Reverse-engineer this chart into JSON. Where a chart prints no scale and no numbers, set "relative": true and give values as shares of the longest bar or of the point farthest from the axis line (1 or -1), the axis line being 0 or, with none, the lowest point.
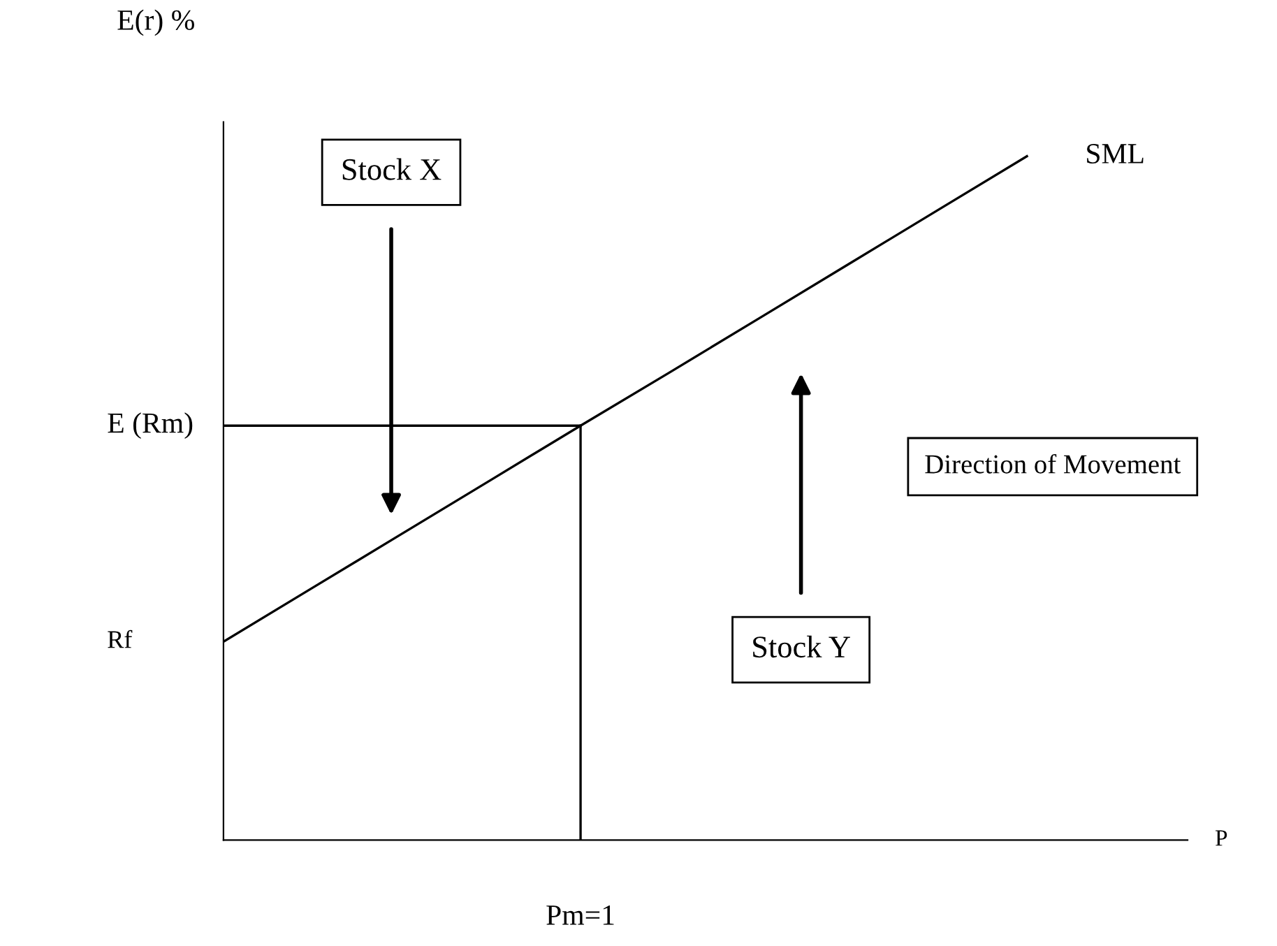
{
  "chart_data": {
    "type": "line",
    "relative": true,
    "ylabel": "E(r) %",
    "categories": [
      null,
      null,
      null,
      null,
      null,
      null,
      null,
      null,
      null,
      null
    ],
    "series": [
      {
        "name": "SML",
        "color": "#000000",
        "values": [
          0.29,
          0.369,
          0.448,
          0.527,
          0.606,
          0.684,
          0.763,
          0.842,
          0.921,
          1.0
        ]
      }
    ],
    "ref_lines": [
      {
        "axis": "y",
        "value": 0.606,
        "label": "E (Rm)",
        "color": "#000000"
      }
    ],
    "annotations": [
      "Rf",
      "Stock X",
      "Stock Y",
      "Direction of Movement",
      "Pm=1",
      "P"
    ],
    "line_style": "solid"
  }
}
